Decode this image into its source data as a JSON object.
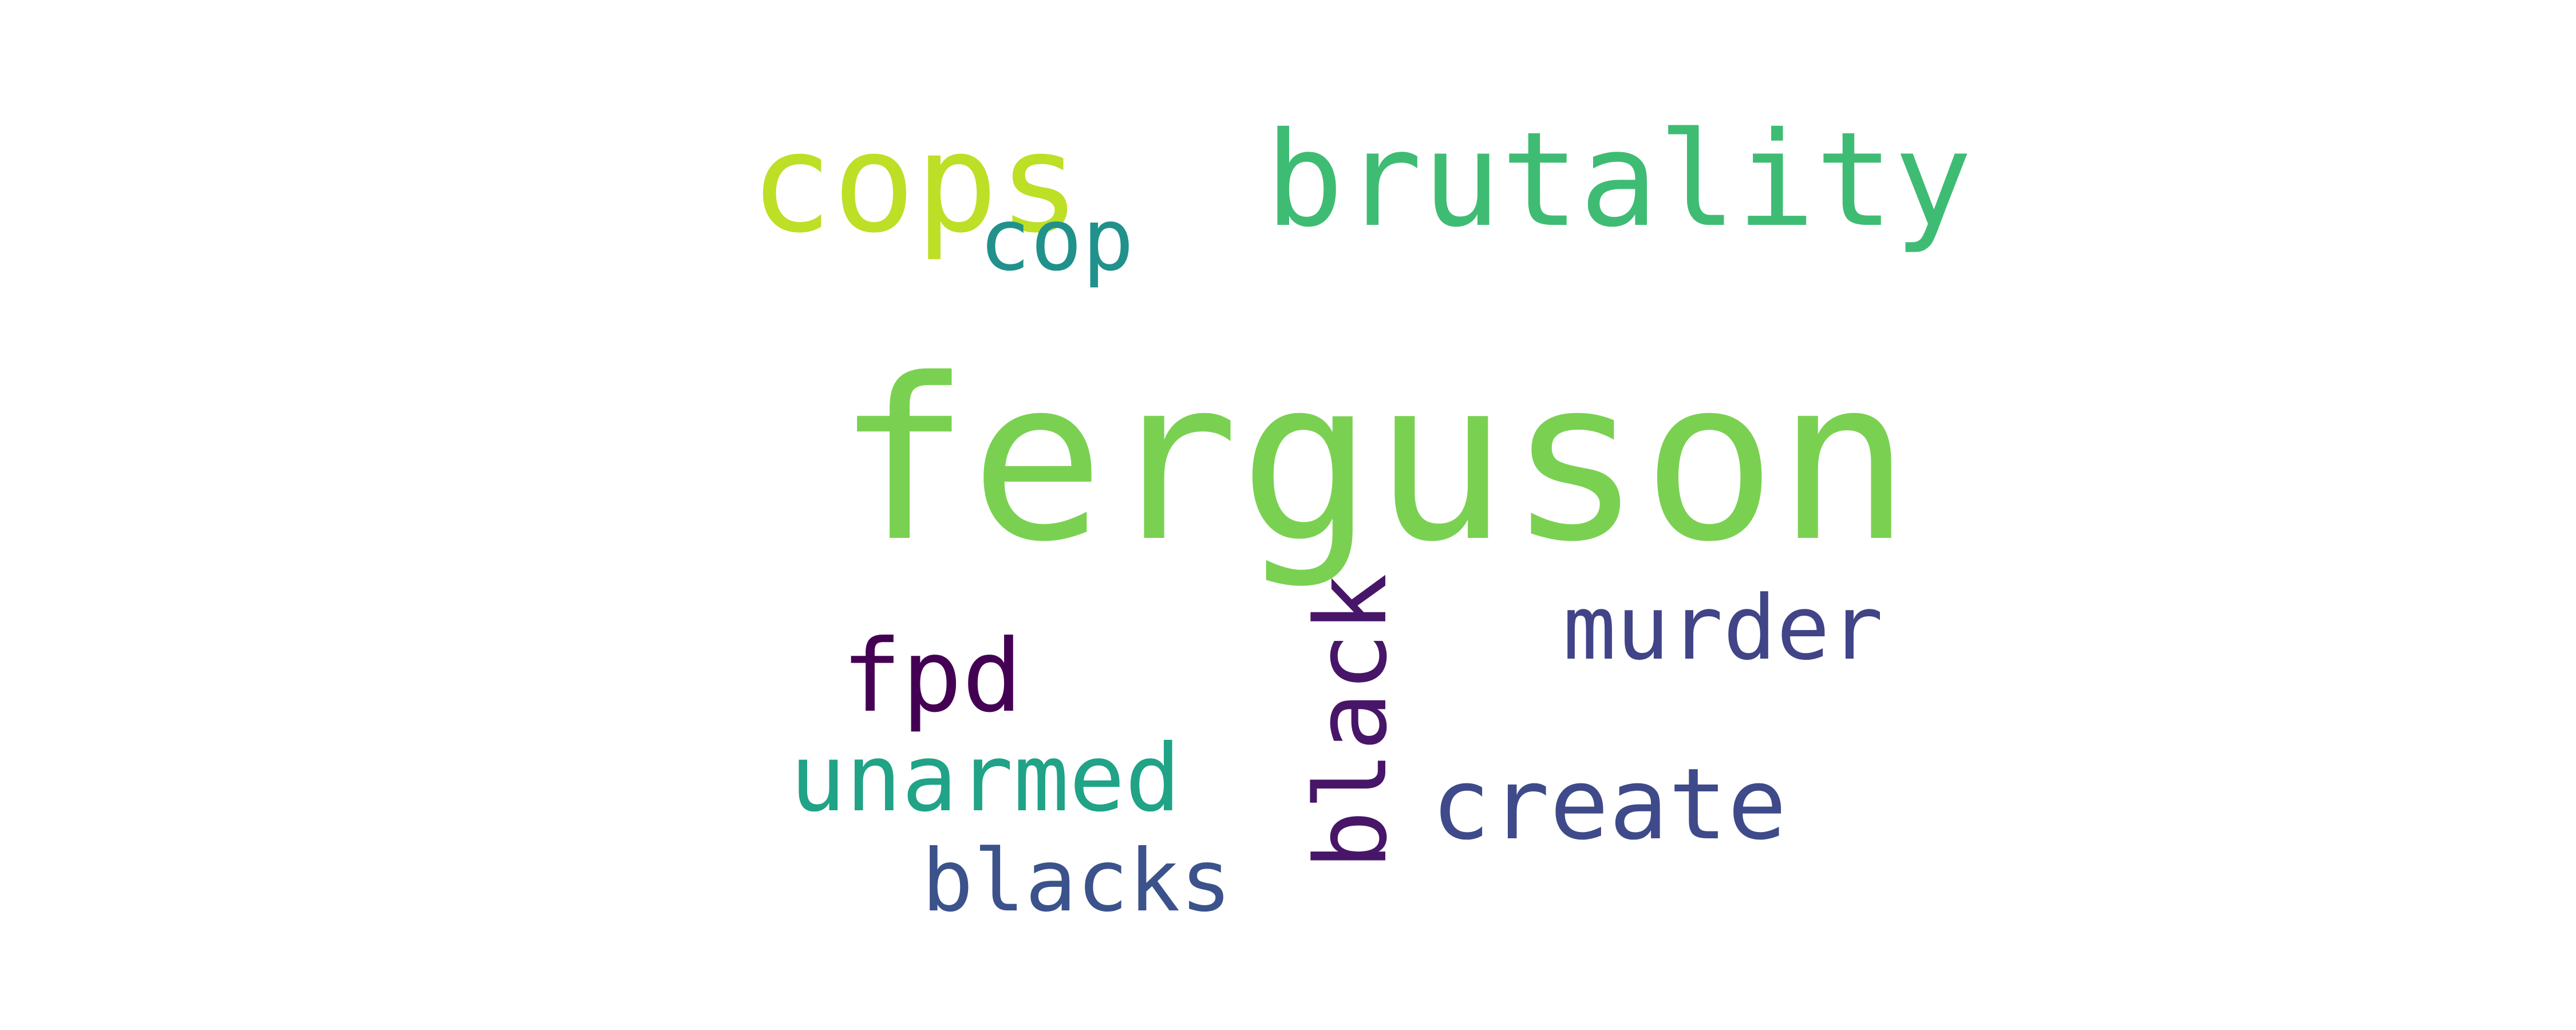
{
  "wordcloud": {
    "background": "#ffffff",
    "words": [
      {
        "text": "ferguson",
        "color": "#7ad151"
      },
      {
        "text": "brutality",
        "color": "#3fbc73"
      },
      {
        "text": "cops",
        "color": "#bddf26"
      },
      {
        "text": "cop",
        "color": "#21918c"
      },
      {
        "text": "murder",
        "color": "#414487"
      },
      {
        "text": "fpd",
        "color": "#440154"
      },
      {
        "text": "black",
        "color": "#481668"
      },
      {
        "text": "unarmed",
        "color": "#20a386"
      },
      {
        "text": "create",
        "color": "#3e4a89"
      },
      {
        "text": "blacks",
        "color": "#3b528b"
      }
    ]
  }
}
